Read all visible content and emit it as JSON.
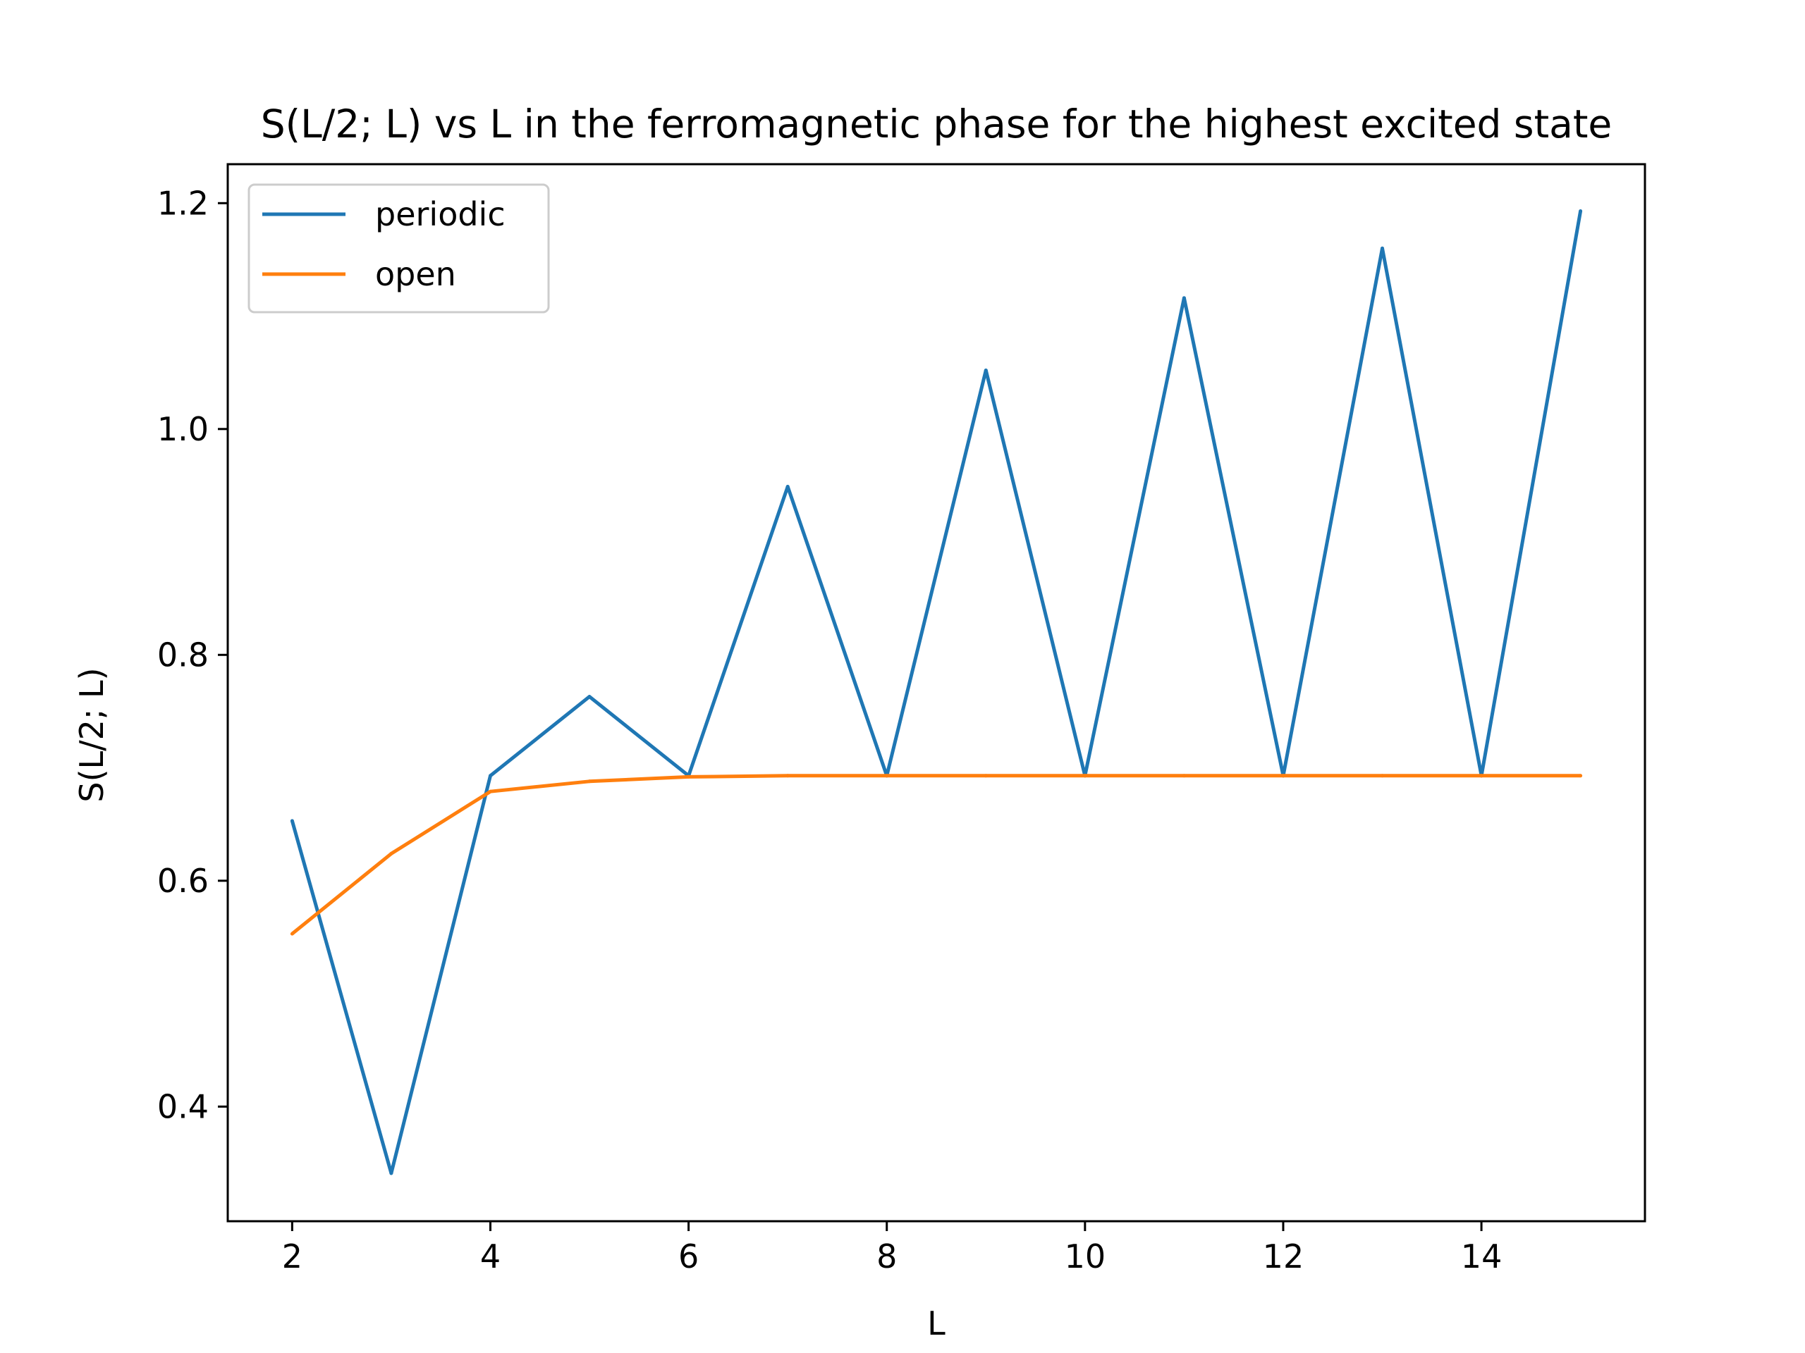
{
  "chart_data": {
    "type": "line",
    "title": "S(L/2; L) vs L in the ferromagnetic phase for the highest excited state",
    "xlabel": "L",
    "ylabel": "S(L/2; L)",
    "xlim": [
      1.35,
      15.65
    ],
    "ylim": [
      0.2985,
      1.2345
    ],
    "xticks": [
      2,
      4,
      6,
      8,
      10,
      12,
      14
    ],
    "xtick_labels": [
      "2",
      "4",
      "6",
      "8",
      "10",
      "12",
      "14"
    ],
    "yticks": [
      0.4,
      0.6,
      0.8,
      1.0,
      1.2
    ],
    "ytick_labels": [
      "0.4",
      "0.6",
      "0.8",
      "1.0",
      "1.2"
    ],
    "grid": false,
    "legend_position": "top-left",
    "x": [
      2,
      3,
      4,
      5,
      6,
      7,
      8,
      9,
      10,
      11,
      12,
      13,
      14,
      15
    ],
    "series": [
      {
        "name": "periodic",
        "color": "#1f77b4",
        "values": [
          0.653,
          0.341,
          0.693,
          0.763,
          0.693,
          0.949,
          0.693,
          1.052,
          0.693,
          1.116,
          0.693,
          1.16,
          0.693,
          1.193
        ]
      },
      {
        "name": "open",
        "color": "#ff7f0e",
        "values": [
          0.553,
          0.624,
          0.679,
          0.688,
          0.692,
          0.693,
          0.693,
          0.693,
          0.693,
          0.693,
          0.693,
          0.693,
          0.693,
          0.693
        ]
      }
    ]
  }
}
